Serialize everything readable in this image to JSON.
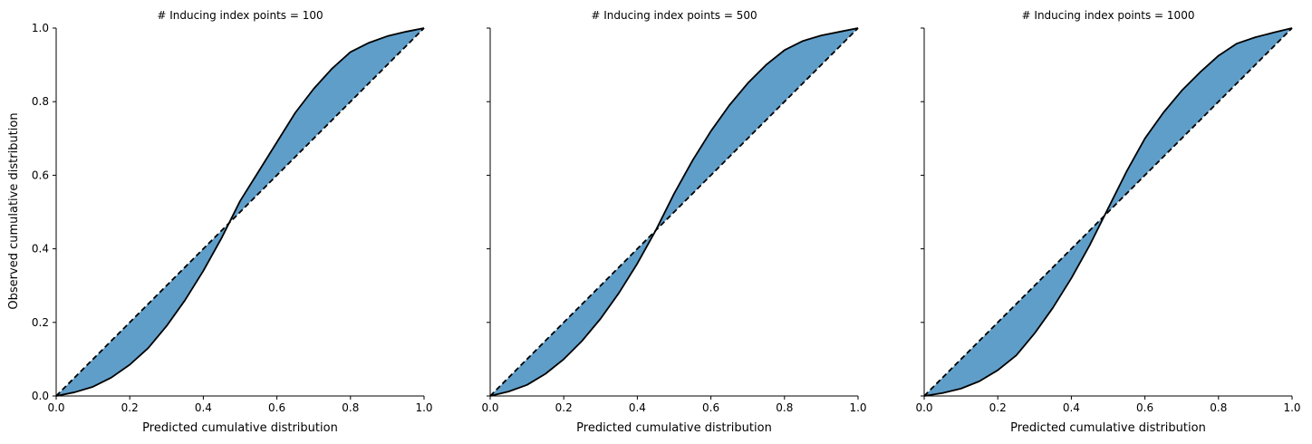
{
  "figure": {
    "shared_ylabel": "Observed cumulative distribution"
  },
  "chart_data": [
    {
      "type": "line",
      "title": "# Inducing index points = 100",
      "xlabel": "Predicted cumulative distribution",
      "ylabel": "Observed cumulative distribution",
      "xlim": [
        0,
        1
      ],
      "ylim": [
        0,
        1
      ],
      "x_ticks": [
        "0.0",
        "0.2",
        "0.4",
        "0.6",
        "0.8",
        "1.0"
      ],
      "y_ticks": [
        "0.0",
        "0.2",
        "0.4",
        "0.6",
        "0.8",
        "1.0"
      ],
      "grid": false,
      "fill_color": "#5f9ec9",
      "series": [
        {
          "style": "solid",
          "x": [
            0,
            0.05,
            0.1,
            0.15,
            0.2,
            0.25,
            0.3,
            0.35,
            0.4,
            0.45,
            0.5,
            0.55,
            0.6,
            0.65,
            0.7,
            0.75,
            0.8,
            0.85,
            0.9,
            0.95,
            1.0
          ],
          "y": [
            0,
            0.01,
            0.025,
            0.05,
            0.085,
            0.13,
            0.19,
            0.26,
            0.34,
            0.43,
            0.53,
            0.61,
            0.69,
            0.77,
            0.835,
            0.89,
            0.935,
            0.96,
            0.978,
            0.99,
            1.0
          ]
        },
        {
          "style": "dashed",
          "x": [
            0,
            1
          ],
          "y": [
            0,
            1
          ]
        }
      ]
    },
    {
      "type": "line",
      "title": "# Inducing index points = 500",
      "xlabel": "Predicted cumulative distribution",
      "xlim": [
        0,
        1
      ],
      "ylim": [
        0,
        1
      ],
      "x_ticks": [
        "0.0",
        "0.2",
        "0.4",
        "0.6",
        "0.8",
        "1.0"
      ],
      "grid": false,
      "fill_color": "#5f9ec9",
      "series": [
        {
          "style": "solid",
          "x": [
            0,
            0.05,
            0.1,
            0.15,
            0.2,
            0.25,
            0.3,
            0.35,
            0.4,
            0.45,
            0.5,
            0.55,
            0.6,
            0.65,
            0.7,
            0.75,
            0.8,
            0.85,
            0.9,
            0.95,
            1.0
          ],
          "y": [
            0,
            0.012,
            0.03,
            0.06,
            0.1,
            0.15,
            0.21,
            0.28,
            0.36,
            0.45,
            0.55,
            0.64,
            0.72,
            0.79,
            0.85,
            0.9,
            0.94,
            0.965,
            0.98,
            0.99,
            1.0
          ]
        },
        {
          "style": "dashed",
          "x": [
            0,
            1
          ],
          "y": [
            0,
            1
          ]
        }
      ]
    },
    {
      "type": "line",
      "title": "# Inducing index points = 1000",
      "xlabel": "Predicted cumulative distribution",
      "xlim": [
        0,
        1
      ],
      "ylim": [
        0,
        1
      ],
      "x_ticks": [
        "0.0",
        "0.2",
        "0.4",
        "0.6",
        "0.8",
        "1.0"
      ],
      "grid": false,
      "fill_color": "#5f9ec9",
      "series": [
        {
          "style": "solid",
          "x": [
            0,
            0.05,
            0.1,
            0.15,
            0.2,
            0.25,
            0.3,
            0.35,
            0.4,
            0.45,
            0.5,
            0.55,
            0.6,
            0.65,
            0.7,
            0.75,
            0.8,
            0.85,
            0.9,
            0.95,
            1.0
          ],
          "y": [
            0,
            0.008,
            0.02,
            0.04,
            0.07,
            0.11,
            0.17,
            0.24,
            0.32,
            0.41,
            0.51,
            0.61,
            0.7,
            0.77,
            0.83,
            0.88,
            0.925,
            0.958,
            0.975,
            0.988,
            1.0
          ]
        },
        {
          "style": "dashed",
          "x": [
            0,
            1
          ],
          "y": [
            0,
            1
          ]
        }
      ]
    }
  ]
}
